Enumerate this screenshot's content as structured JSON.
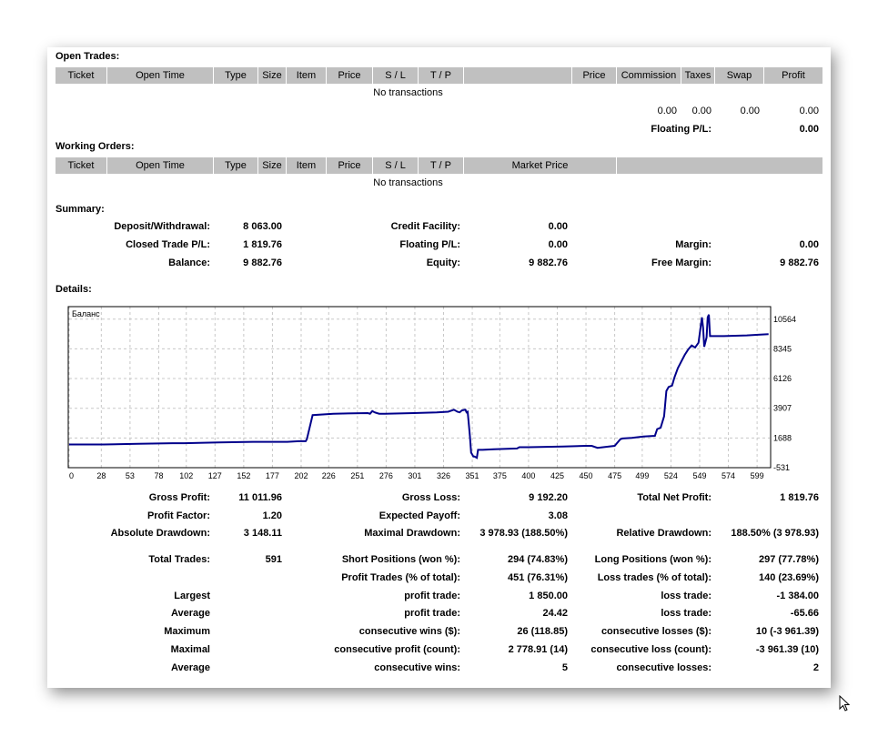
{
  "open_trades": {
    "title": "Open Trades:",
    "columns": [
      "Ticket",
      "Open Time",
      "Type",
      "Size",
      "Item",
      "Price",
      "S / L",
      "T / P",
      "",
      "Price",
      "Commission",
      "Taxes",
      "Swap",
      "Profit"
    ],
    "empty": "No transactions",
    "totals": {
      "commission": "0.00",
      "taxes": "0.00",
      "swap": "0.00",
      "profit": "0.00"
    },
    "floating_label": "Floating P/L:",
    "floating_value": "0.00"
  },
  "working_orders": {
    "title": "Working Orders:",
    "columns": [
      "Ticket",
      "Open Time",
      "Type",
      "Size",
      "Item",
      "Price",
      "S / L",
      "T / P",
      "Market Price",
      ""
    ],
    "empty": "No transactions"
  },
  "summary": {
    "title": "Summary:",
    "deposit_label": "Deposit/Withdrawal:",
    "deposit_value": "8 063.00",
    "credit_label": "Credit Facility:",
    "credit_value": "0.00",
    "closed_label": "Closed Trade P/L:",
    "closed_value": "1 819.76",
    "floating_label": "Floating P/L:",
    "floating_value": "0.00",
    "margin_label": "Margin:",
    "margin_value": "0.00",
    "balance_label": "Balance:",
    "balance_value": "9 882.76",
    "equity_label": "Equity:",
    "equity_value": "9 882.76",
    "free_margin_label": "Free Margin:",
    "free_margin_value": "9 882.76"
  },
  "details": {
    "title": "Details:"
  },
  "chart_data": {
    "type": "line",
    "title": "Баланс",
    "xlabel": "",
    "ylabel": "",
    "x_ticks": [
      "0",
      "28",
      "53",
      "78",
      "102",
      "127",
      "152",
      "177",
      "202",
      "226",
      "251",
      "276",
      "301",
      "326",
      "351",
      "375",
      "400",
      "425",
      "450",
      "475",
      "499",
      "524",
      "549",
      "574",
      "599"
    ],
    "y_ticks": [
      "10564",
      "8345",
      "6126",
      "3907",
      "1688",
      "-531"
    ],
    "xlim": [
      0,
      610
    ],
    "ylim": [
      -531,
      11500
    ],
    "series": [
      {
        "name": "Баланс",
        "color": "#00008b",
        "x": [
          0,
          30,
          60,
          90,
          100,
          130,
          160,
          190,
          200,
          206,
          207,
          212,
          230,
          260,
          262,
          264,
          266,
          268,
          270,
          275,
          300,
          320,
          330,
          335,
          338,
          340,
          342,
          345,
          346,
          347,
          348,
          349,
          350,
          352,
          353,
          355,
          356,
          360,
          370,
          390,
          392,
          400,
          430,
          450,
          455,
          460,
          470,
          475,
          480,
          482,
          490,
          500,
          510,
          512,
          515,
          518,
          520,
          522,
          525,
          527,
          530,
          533,
          536,
          539,
          542,
          545,
          548,
          550,
          551,
          552,
          553,
          555,
          556,
          557,
          558,
          570,
          590,
          600,
          609
        ],
        "y": [
          1200,
          1200,
          1250,
          1300,
          1300,
          1350,
          1400,
          1400,
          1450,
          1450,
          1600,
          3400,
          3500,
          3550,
          3500,
          3700,
          3600,
          3550,
          3500,
          3500,
          3550,
          3600,
          3650,
          3800,
          3650,
          3600,
          3750,
          3800,
          3600,
          3650,
          2700,
          1800,
          600,
          300,
          300,
          200,
          800,
          800,
          850,
          900,
          1000,
          1000,
          1050,
          1100,
          1100,
          950,
          1050,
          1100,
          1600,
          1650,
          1700,
          1800,
          1850,
          2350,
          2450,
          3300,
          5200,
          5500,
          5600,
          6200,
          6900,
          7400,
          7900,
          8300,
          8600,
          8450,
          8800,
          10100,
          10700,
          9900,
          8500,
          9200,
          10700,
          10900,
          9300,
          9300,
          9350,
          9400,
          9450
        ]
      }
    ]
  },
  "stats": {
    "gross_profit_label": "Gross Profit:",
    "gross_profit_value": "11 011.96",
    "gross_loss_label": "Gross Loss:",
    "gross_loss_value": "9 192.20",
    "total_net_label": "Total Net Profit:",
    "total_net_value": "1 819.76",
    "profit_factor_label": "Profit Factor:",
    "profit_factor_value": "1.20",
    "expected_payoff_label": "Expected Payoff:",
    "expected_payoff_value": "3.08",
    "abs_dd_label": "Absolute Drawdown:",
    "abs_dd_value": "3 148.11",
    "max_dd_label": "Maximal Drawdown:",
    "max_dd_value": "3 978.93 (188.50%)",
    "rel_dd_label": "Relative Drawdown:",
    "rel_dd_value": "188.50% (3 978.93)",
    "total_trades_label": "Total Trades:",
    "total_trades_value": "591",
    "short_label": "Short Positions (won %):",
    "short_value": "294 (74.83%)",
    "long_label": "Long Positions (won %):",
    "long_value": "297 (77.78%)",
    "profit_trades_label": "Profit Trades (% of total):",
    "profit_trades_value": "451 (76.31%)",
    "loss_trades_label": "Loss trades (% of total):",
    "loss_trades_value": "140 (23.69%)",
    "largest_label": "Largest",
    "largest_profit_label": "profit trade:",
    "largest_profit_value": "1 850.00",
    "largest_loss_label": "loss trade:",
    "largest_loss_value": "-1 384.00",
    "average_label": "Average",
    "average_profit_label": "profit trade:",
    "average_profit_value": "24.42",
    "average_loss_label": "loss trade:",
    "average_loss_value": "-65.66",
    "maximum_label": "Maximum",
    "max_cons_wins_label": "consecutive wins ($):",
    "max_cons_wins_value": "26 (118.85)",
    "max_cons_losses_label": "consecutive losses ($):",
    "max_cons_losses_value": "10 (-3 961.39)",
    "maximal_label": "Maximal",
    "maximal_cons_profit_label": "consecutive profit (count):",
    "maximal_cons_profit_value": "2 778.91 (14)",
    "maximal_cons_loss_label": "consecutive loss (count):",
    "maximal_cons_loss_value": "-3 961.39 (10)",
    "average2_label": "Average",
    "avg_cons_wins_label": "consecutive wins:",
    "avg_cons_wins_value": "5",
    "avg_cons_losses_label": "consecutive losses:",
    "avg_cons_losses_value": "2"
  }
}
